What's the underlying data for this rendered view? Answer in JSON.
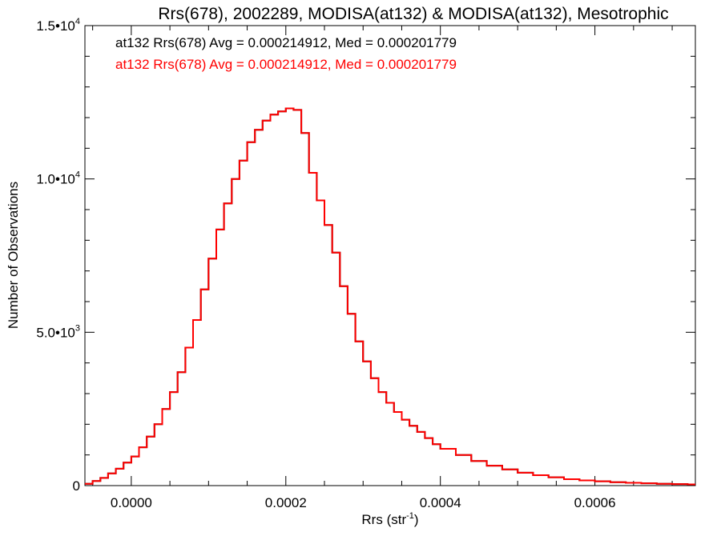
{
  "colors": {
    "series1": "#000000",
    "series2": "#ff0000",
    "axis": "#000000",
    "background": "#ffffff"
  },
  "chart_data": {
    "type": "line",
    "step": true,
    "title": "Rrs(678), 2002289, MODISA(at132) & MODISA(at132), Mesotrophic",
    "xlabel": "Rrs (str",
    "xlabel_sup": "-1",
    "xlabel_tail": ")",
    "ylabel": "Number of Observations",
    "xlim": [
      -6e-05,
      0.00073
    ],
    "ylim": [
      0,
      15000
    ],
    "x_ticks": [
      {
        "value": 0.0,
        "label": "0.0000"
      },
      {
        "value": 0.0002,
        "label": "0.0002"
      },
      {
        "value": 0.0004,
        "label": "0.0004"
      },
      {
        "value": 0.0006,
        "label": "0.0006"
      }
    ],
    "y_ticks": [
      {
        "value": 0,
        "label": "0",
        "sup": ""
      },
      {
        "value": 5000,
        "label": "5.0•10",
        "sup": "3"
      },
      {
        "value": 10000,
        "label": "1.0•10",
        "sup": "4"
      },
      {
        "value": 15000,
        "label": "1.5•10",
        "sup": "4"
      }
    ],
    "annotations": [
      {
        "text": "at132 Rrs(678) Avg = 0.000214912, Med = 0.000201779",
        "color": "#000000"
      },
      {
        "text": "at132 Rrs(678) Avg = 0.000214912, Med = 0.000201779",
        "color": "#ff0000"
      }
    ],
    "series": [
      {
        "color": "#000000",
        "x": [
          -6e-05,
          -5e-05,
          -4e-05,
          -3e-05,
          -2e-05,
          -1e-05,
          0,
          1e-05,
          2e-05,
          3e-05,
          4e-05,
          5e-05,
          6e-05,
          7e-05,
          8e-05,
          9e-05,
          0.0001,
          0.00011,
          0.00012,
          0.00013,
          0.00014,
          0.00015,
          0.00016,
          0.00017,
          0.00018,
          0.00019,
          0.0002,
          0.00021,
          0.00022,
          0.00023,
          0.00024,
          0.00025,
          0.00026,
          0.00027,
          0.00028,
          0.00029,
          0.0003,
          0.00031,
          0.00032,
          0.00033,
          0.00034,
          0.00035,
          0.00036,
          0.00037,
          0.00038,
          0.00039,
          0.0004,
          0.00042,
          0.00044,
          0.00046,
          0.00048,
          0.0005,
          0.00052,
          0.00054,
          0.00056,
          0.00058,
          0.0006,
          0.00062,
          0.00064,
          0.00066,
          0.00068,
          0.0007,
          0.00072
        ],
        "y": [
          60,
          150,
          250,
          400,
          550,
          750,
          950,
          1250,
          1600,
          2000,
          2500,
          3050,
          3700,
          4500,
          5400,
          6400,
          7400,
          8350,
          9200,
          10000,
          10600,
          11200,
          11600,
          11900,
          12100,
          12200,
          12300,
          12250,
          11500,
          10200,
          9300,
          8500,
          7600,
          6500,
          5600,
          4700,
          4050,
          3500,
          3050,
          2700,
          2400,
          2150,
          1950,
          1750,
          1550,
          1350,
          1200,
          1000,
          800,
          650,
          530,
          420,
          340,
          270,
          210,
          170,
          140,
          110,
          90,
          75,
          60,
          50,
          40
        ]
      },
      {
        "color": "#ff0000",
        "x": [
          -6e-05,
          -5e-05,
          -4e-05,
          -3e-05,
          -2e-05,
          -1e-05,
          0,
          1e-05,
          2e-05,
          3e-05,
          4e-05,
          5e-05,
          6e-05,
          7e-05,
          8e-05,
          9e-05,
          0.0001,
          0.00011,
          0.00012,
          0.00013,
          0.00014,
          0.00015,
          0.00016,
          0.00017,
          0.00018,
          0.00019,
          0.0002,
          0.00021,
          0.00022,
          0.00023,
          0.00024,
          0.00025,
          0.00026,
          0.00027,
          0.00028,
          0.00029,
          0.0003,
          0.00031,
          0.00032,
          0.00033,
          0.00034,
          0.00035,
          0.00036,
          0.00037,
          0.00038,
          0.00039,
          0.0004,
          0.00042,
          0.00044,
          0.00046,
          0.00048,
          0.0005,
          0.00052,
          0.00054,
          0.00056,
          0.00058,
          0.0006,
          0.00062,
          0.00064,
          0.00066,
          0.00068,
          0.0007,
          0.00072
        ],
        "y": [
          60,
          150,
          250,
          400,
          550,
          750,
          950,
          1250,
          1600,
          2000,
          2500,
          3050,
          3700,
          4500,
          5400,
          6400,
          7400,
          8350,
          9200,
          10000,
          10600,
          11200,
          11600,
          11900,
          12100,
          12200,
          12300,
          12250,
          11500,
          10200,
          9300,
          8500,
          7600,
          6500,
          5600,
          4700,
          4050,
          3500,
          3050,
          2700,
          2400,
          2150,
          1950,
          1750,
          1550,
          1350,
          1200,
          1000,
          800,
          650,
          530,
          420,
          340,
          270,
          210,
          170,
          140,
          110,
          90,
          75,
          60,
          50,
          40
        ]
      }
    ]
  }
}
